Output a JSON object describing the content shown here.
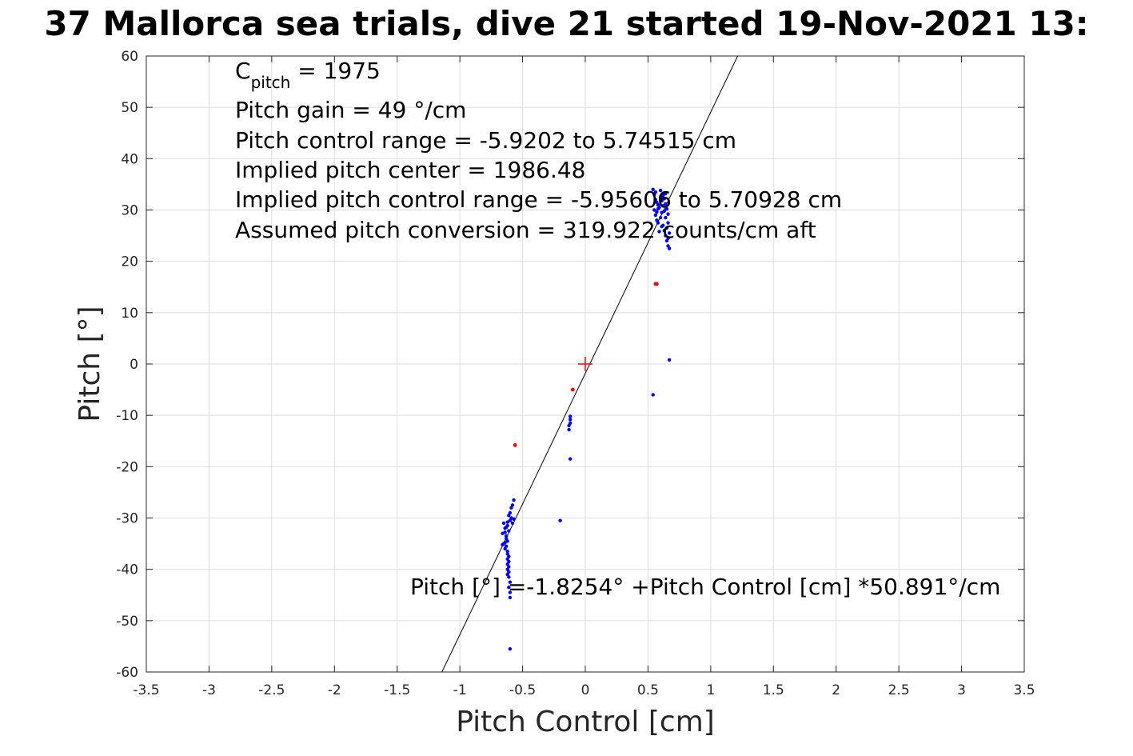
{
  "chart_data": {
    "type": "scatter",
    "title": "37 Mallorca sea trials, dive 21 started 19-Nov-2021 13:",
    "xlabel": "Pitch Control [cm]",
    "ylabel": "Pitch [°]",
    "xlim": [
      -3.5,
      3.5
    ],
    "ylim": [
      -60,
      60
    ],
    "grid": true,
    "xticks": [
      "-3.5",
      "-3",
      "-2.5",
      "-2",
      "-1.5",
      "-1",
      "-0.5",
      "0",
      "0.5",
      "1",
      "1.5",
      "2",
      "2.5",
      "3",
      "3.5"
    ],
    "yticks": [
      "60",
      "50",
      "40",
      "30",
      "20",
      "10",
      "0",
      "-10",
      "-20",
      "-30",
      "-40",
      "-50",
      "-60"
    ],
    "colors": {
      "main": "#0000ff",
      "outlier": "#ff0000",
      "fit": "#000000",
      "center": "#ff0000"
    },
    "annotations": {
      "c_pitch_main": "C",
      "c_pitch_sub": "pitch",
      "c_pitch_value": " = 1975",
      "line2": "Pitch gain = 49 °/cm",
      "line3": "Pitch control range = -5.9202 to 5.74515 cm",
      "line4": "Implied pitch center = 1986.48",
      "line5": "Implied pitch control range = -5.95606 to 5.70928 cm",
      "line6": "Assumed pitch conversion = 319.922 counts/cm aft",
      "fit_label": "Pitch [°] =-1.8254° +Pitch Control [cm] *50.891°/cm"
    },
    "fit": {
      "intercept": -1.8254,
      "slope": 50.891
    },
    "center_marker": {
      "x": 0,
      "y": 0
    },
    "series": [
      {
        "values": [
          [
            -0.65,
            -31
          ],
          [
            -0.64,
            -32
          ],
          [
            -0.66,
            -33
          ],
          [
            -0.63,
            -34
          ],
          [
            -0.65,
            -35
          ],
          [
            -0.64,
            -36
          ],
          [
            -0.62,
            -34.5
          ],
          [
            -0.63,
            -33.5
          ],
          [
            -0.61,
            -32.5
          ],
          [
            -0.62,
            -31.5
          ],
          [
            -0.6,
            -30.5
          ],
          [
            -0.59,
            -30
          ],
          [
            -0.58,
            -31
          ],
          [
            -0.57,
            -30.2
          ],
          [
            -0.6,
            -29
          ],
          [
            -0.59,
            -28
          ],
          [
            -0.58,
            -27.5
          ],
          [
            -0.57,
            -26.5
          ],
          [
            -0.61,
            -29.5
          ],
          [
            -0.62,
            -30.8
          ],
          [
            -0.63,
            -35.5
          ],
          [
            -0.62,
            -36.5
          ],
          [
            -0.61,
            -37.5
          ],
          [
            -0.61,
            -38.5
          ],
          [
            -0.61,
            -39.5
          ],
          [
            -0.61,
            -40.5
          ],
          [
            -0.61,
            -41.5
          ],
          [
            -0.6,
            -42.5
          ],
          [
            -0.61,
            -43.5
          ],
          [
            -0.6,
            -44.5
          ],
          [
            -0.6,
            -45.5
          ],
          [
            -0.62,
            -37
          ],
          [
            -0.62,
            -38
          ],
          [
            -0.62,
            -39
          ],
          [
            -0.62,
            -40
          ],
          [
            -0.62,
            -41
          ],
          [
            -0.64,
            -34.8
          ],
          [
            -0.66,
            -35.2
          ],
          [
            -0.64,
            -32.8
          ],
          [
            -0.63,
            -31.8
          ],
          [
            -0.6,
            -55.5
          ],
          [
            -0.12,
            -10.2
          ],
          [
            -0.12,
            -10.8
          ],
          [
            -0.12,
            -11.5
          ],
          [
            -0.13,
            -12.0
          ],
          [
            -0.13,
            -12.8
          ],
          [
            -0.12,
            -18.5
          ],
          [
            -0.2,
            -30.5
          ],
          [
            0.54,
            -6
          ],
          [
            0.67,
            0.8
          ],
          [
            0.55,
            33
          ],
          [
            0.56,
            32
          ],
          [
            0.57,
            31.5
          ],
          [
            0.58,
            31
          ],
          [
            0.59,
            30.5
          ],
          [
            0.6,
            32.5
          ],
          [
            0.61,
            31.8
          ],
          [
            0.62,
            33
          ],
          [
            0.63,
            32.2
          ],
          [
            0.64,
            31.2
          ],
          [
            0.65,
            30.2
          ],
          [
            0.55,
            30
          ],
          [
            0.56,
            29
          ],
          [
            0.57,
            28
          ],
          [
            0.58,
            27.5
          ],
          [
            0.6,
            28.5
          ],
          [
            0.61,
            29.5
          ],
          [
            0.62,
            27
          ],
          [
            0.63,
            26
          ],
          [
            0.64,
            25
          ],
          [
            0.65,
            24
          ],
          [
            0.66,
            23
          ],
          [
            0.67,
            22.5
          ],
          [
            0.66,
            24.5
          ],
          [
            0.65,
            26.5
          ],
          [
            0.64,
            28.5
          ],
          [
            0.63,
            29.8
          ],
          [
            0.62,
            30.8
          ],
          [
            0.54,
            34
          ],
          [
            0.56,
            33.5
          ],
          [
            0.6,
            33.8
          ],
          [
            0.62,
            32.8
          ],
          [
            0.64,
            33.2
          ],
          [
            0.66,
            27.5
          ],
          [
            0.67,
            25.5
          ],
          [
            0.61,
            26.8
          ],
          [
            0.59,
            25.8
          ],
          [
            0.58,
            30.2
          ],
          [
            0.57,
            29.6
          ],
          [
            0.66,
            29.2
          ]
        ]
      },
      {
        "values": [
          [
            -0.56,
            -15.8
          ],
          [
            -0.1,
            -5
          ],
          [
            0.56,
            15.6
          ],
          [
            0.57,
            15.6
          ]
        ]
      }
    ]
  }
}
